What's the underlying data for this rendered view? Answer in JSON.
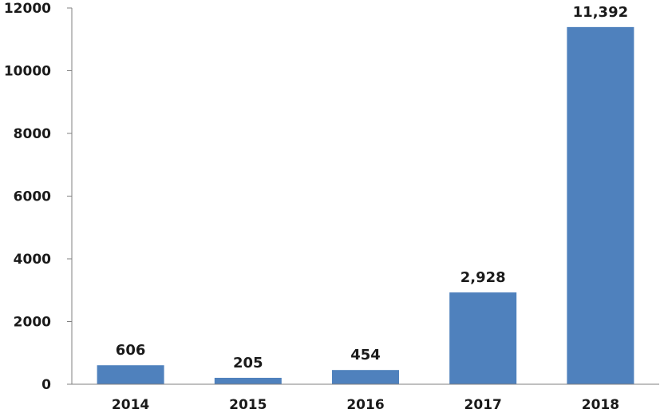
{
  "chart_data": {
    "type": "bar",
    "categories": [
      "2014",
      "2015",
      "2016",
      "2017",
      "2018"
    ],
    "values": [
      606,
      205,
      454,
      2928,
      11392
    ],
    "data_labels": [
      "606",
      "205",
      "454",
      "2,928",
      "11,392"
    ],
    "y_ticks": [
      "0",
      "2000",
      "4000",
      "6000",
      "8000",
      "10000",
      "12000"
    ],
    "ylim": [
      0,
      12000
    ],
    "bar_color": "#4f81bd",
    "grid": false,
    "legend": "none"
  }
}
